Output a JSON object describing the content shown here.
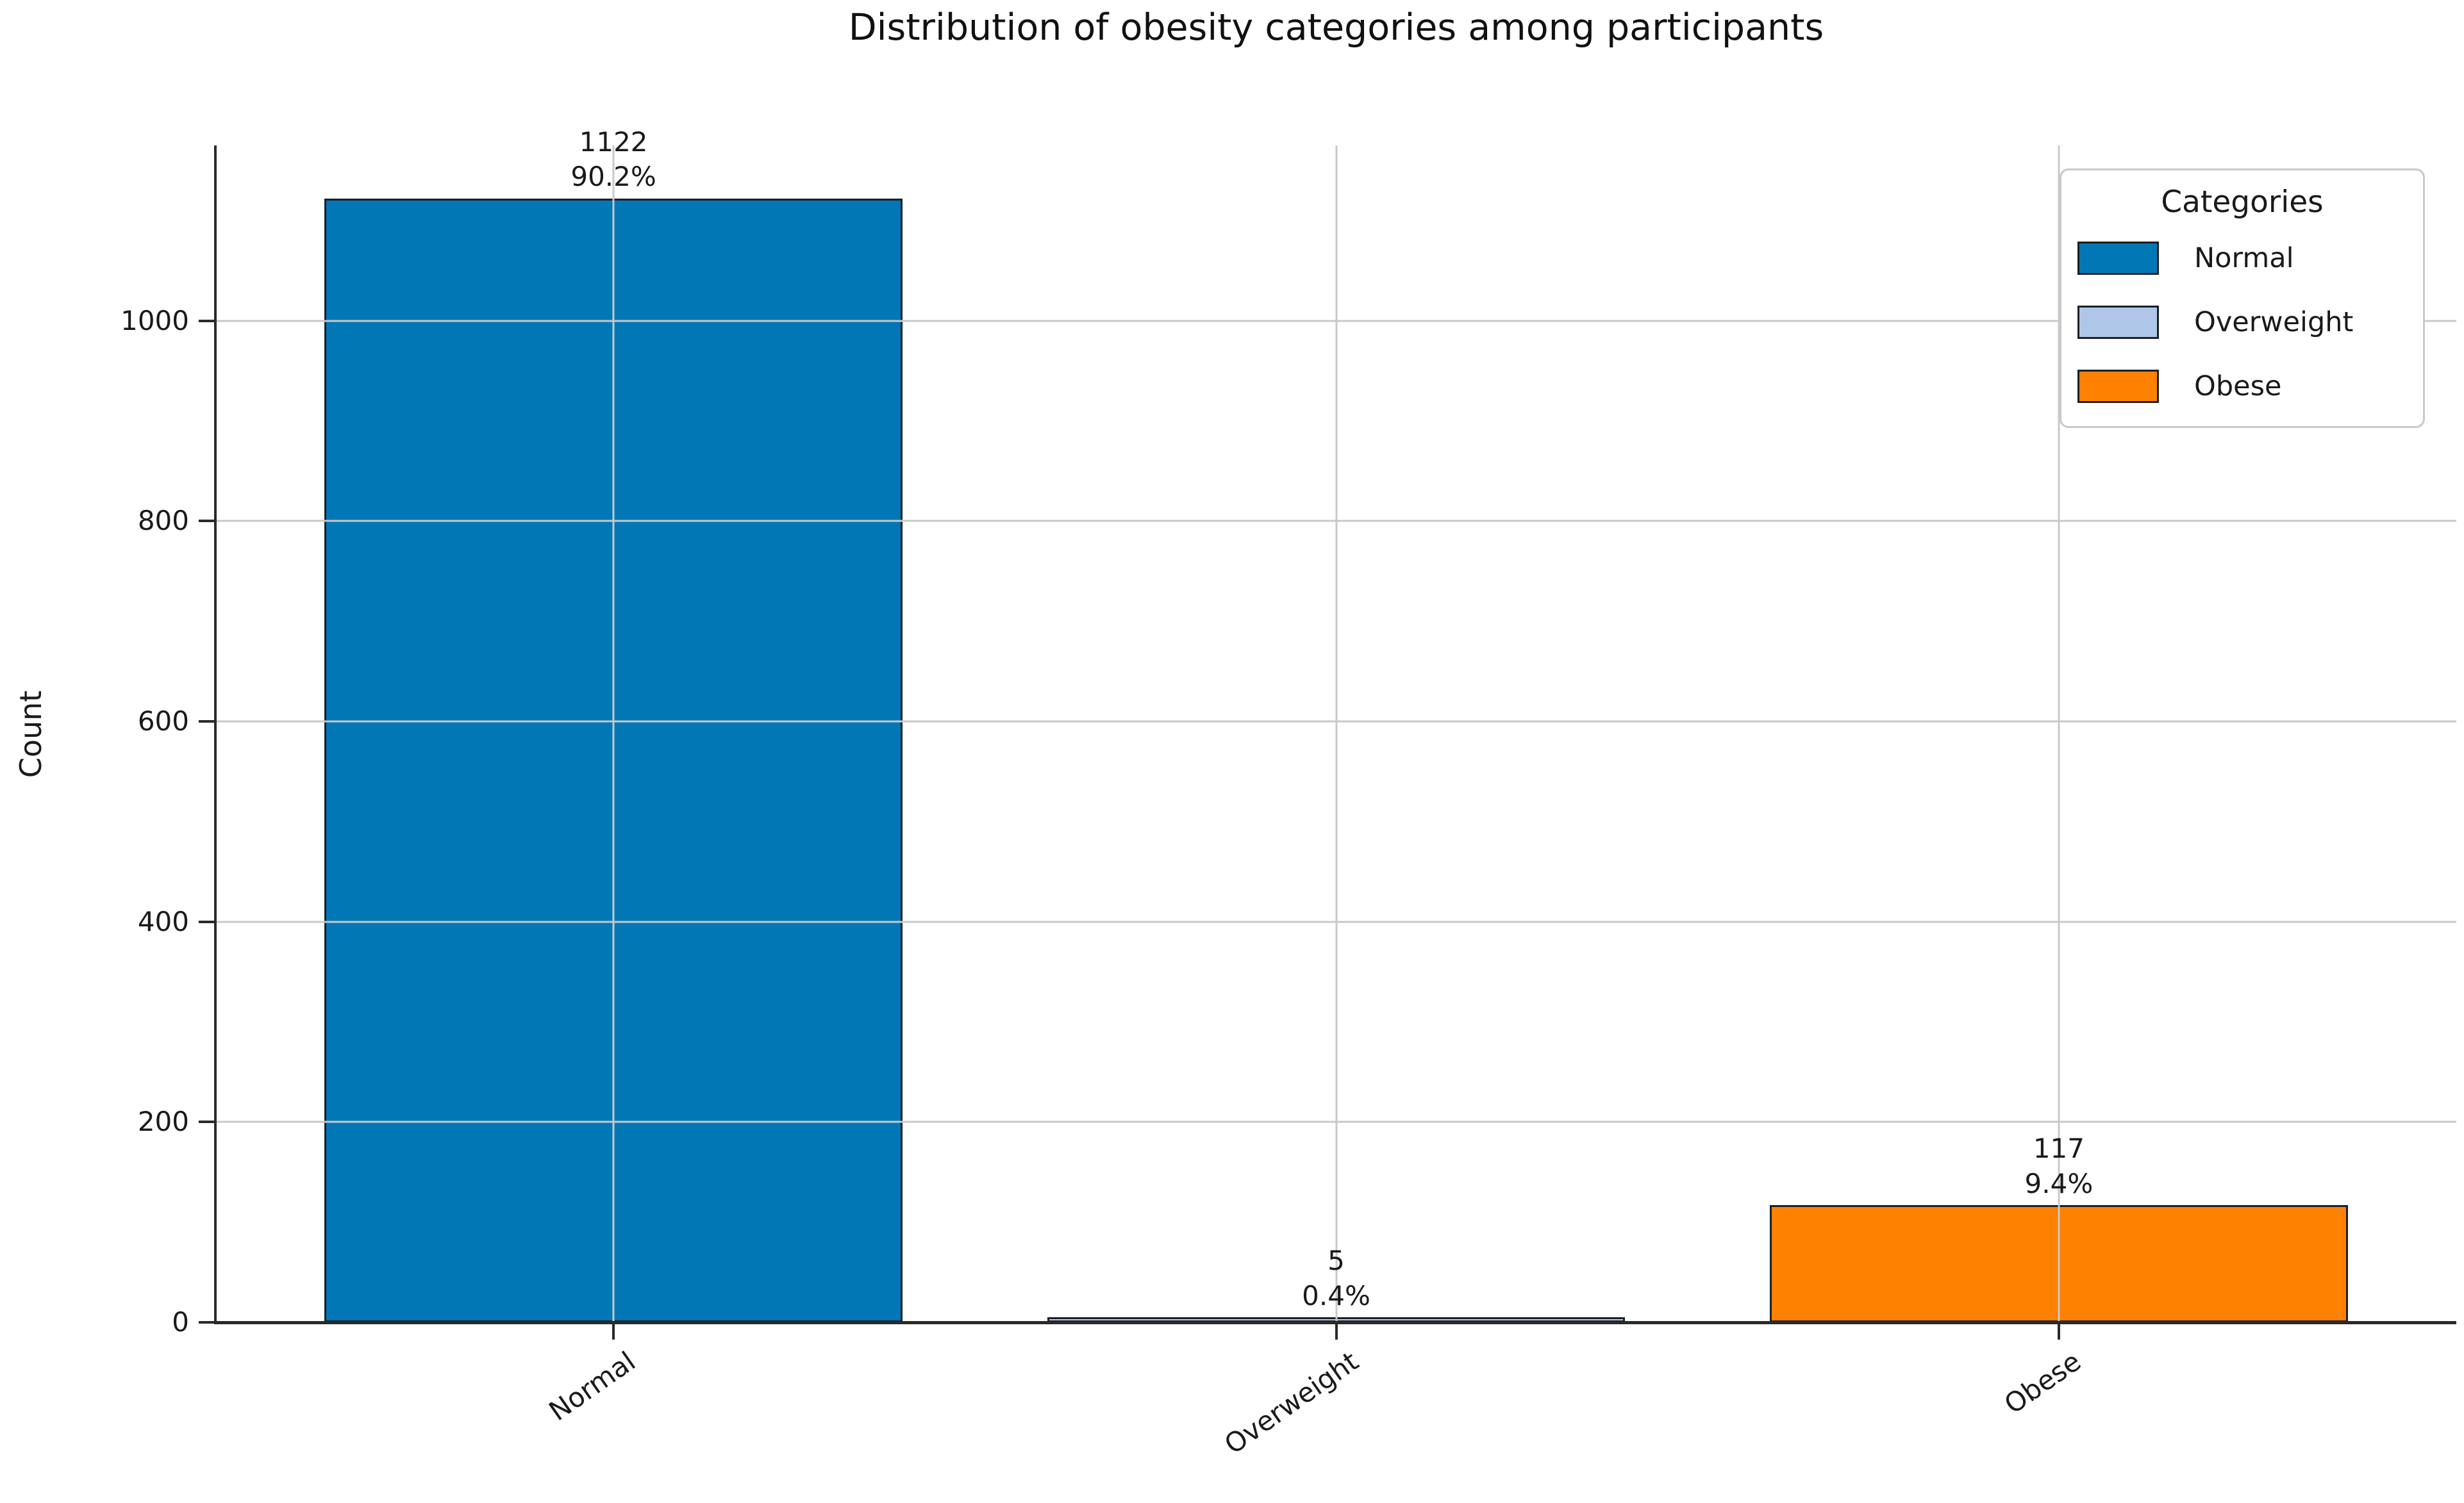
{
  "title": "Distribution of obesity categories among participants",
  "y_axis_label": "Count",
  "legend_title": "Categories",
  "chart_data": {
    "type": "bar",
    "title": "Distribution of obesity categories among participants",
    "xlabel": "",
    "ylabel": "Count",
    "categories": [
      "Normal",
      "Overweight",
      "Obese"
    ],
    "values": [
      1122,
      5,
      117
    ],
    "percent_labels": [
      "90.2%",
      "0.4%",
      "9.4%"
    ],
    "bar_colors": [
      "#0277b6",
      "#aec7e8",
      "#ff8102"
    ],
    "bar_edge_color": "#1a1f26",
    "yticks": [
      0,
      200,
      400,
      600,
      800,
      1000
    ],
    "ylim": [
      0,
      1175
    ],
    "grid": true,
    "grid_color": "#c9c9c9",
    "xtick_rotation_deg": 35,
    "legend": {
      "title": "Categories",
      "position": "upper right",
      "entries": [
        {
          "label": "Normal",
          "color": "#0277b6"
        },
        {
          "label": "Overweight",
          "color": "#aec7e8"
        },
        {
          "label": "Obese",
          "color": "#ff8102"
        }
      ]
    }
  }
}
